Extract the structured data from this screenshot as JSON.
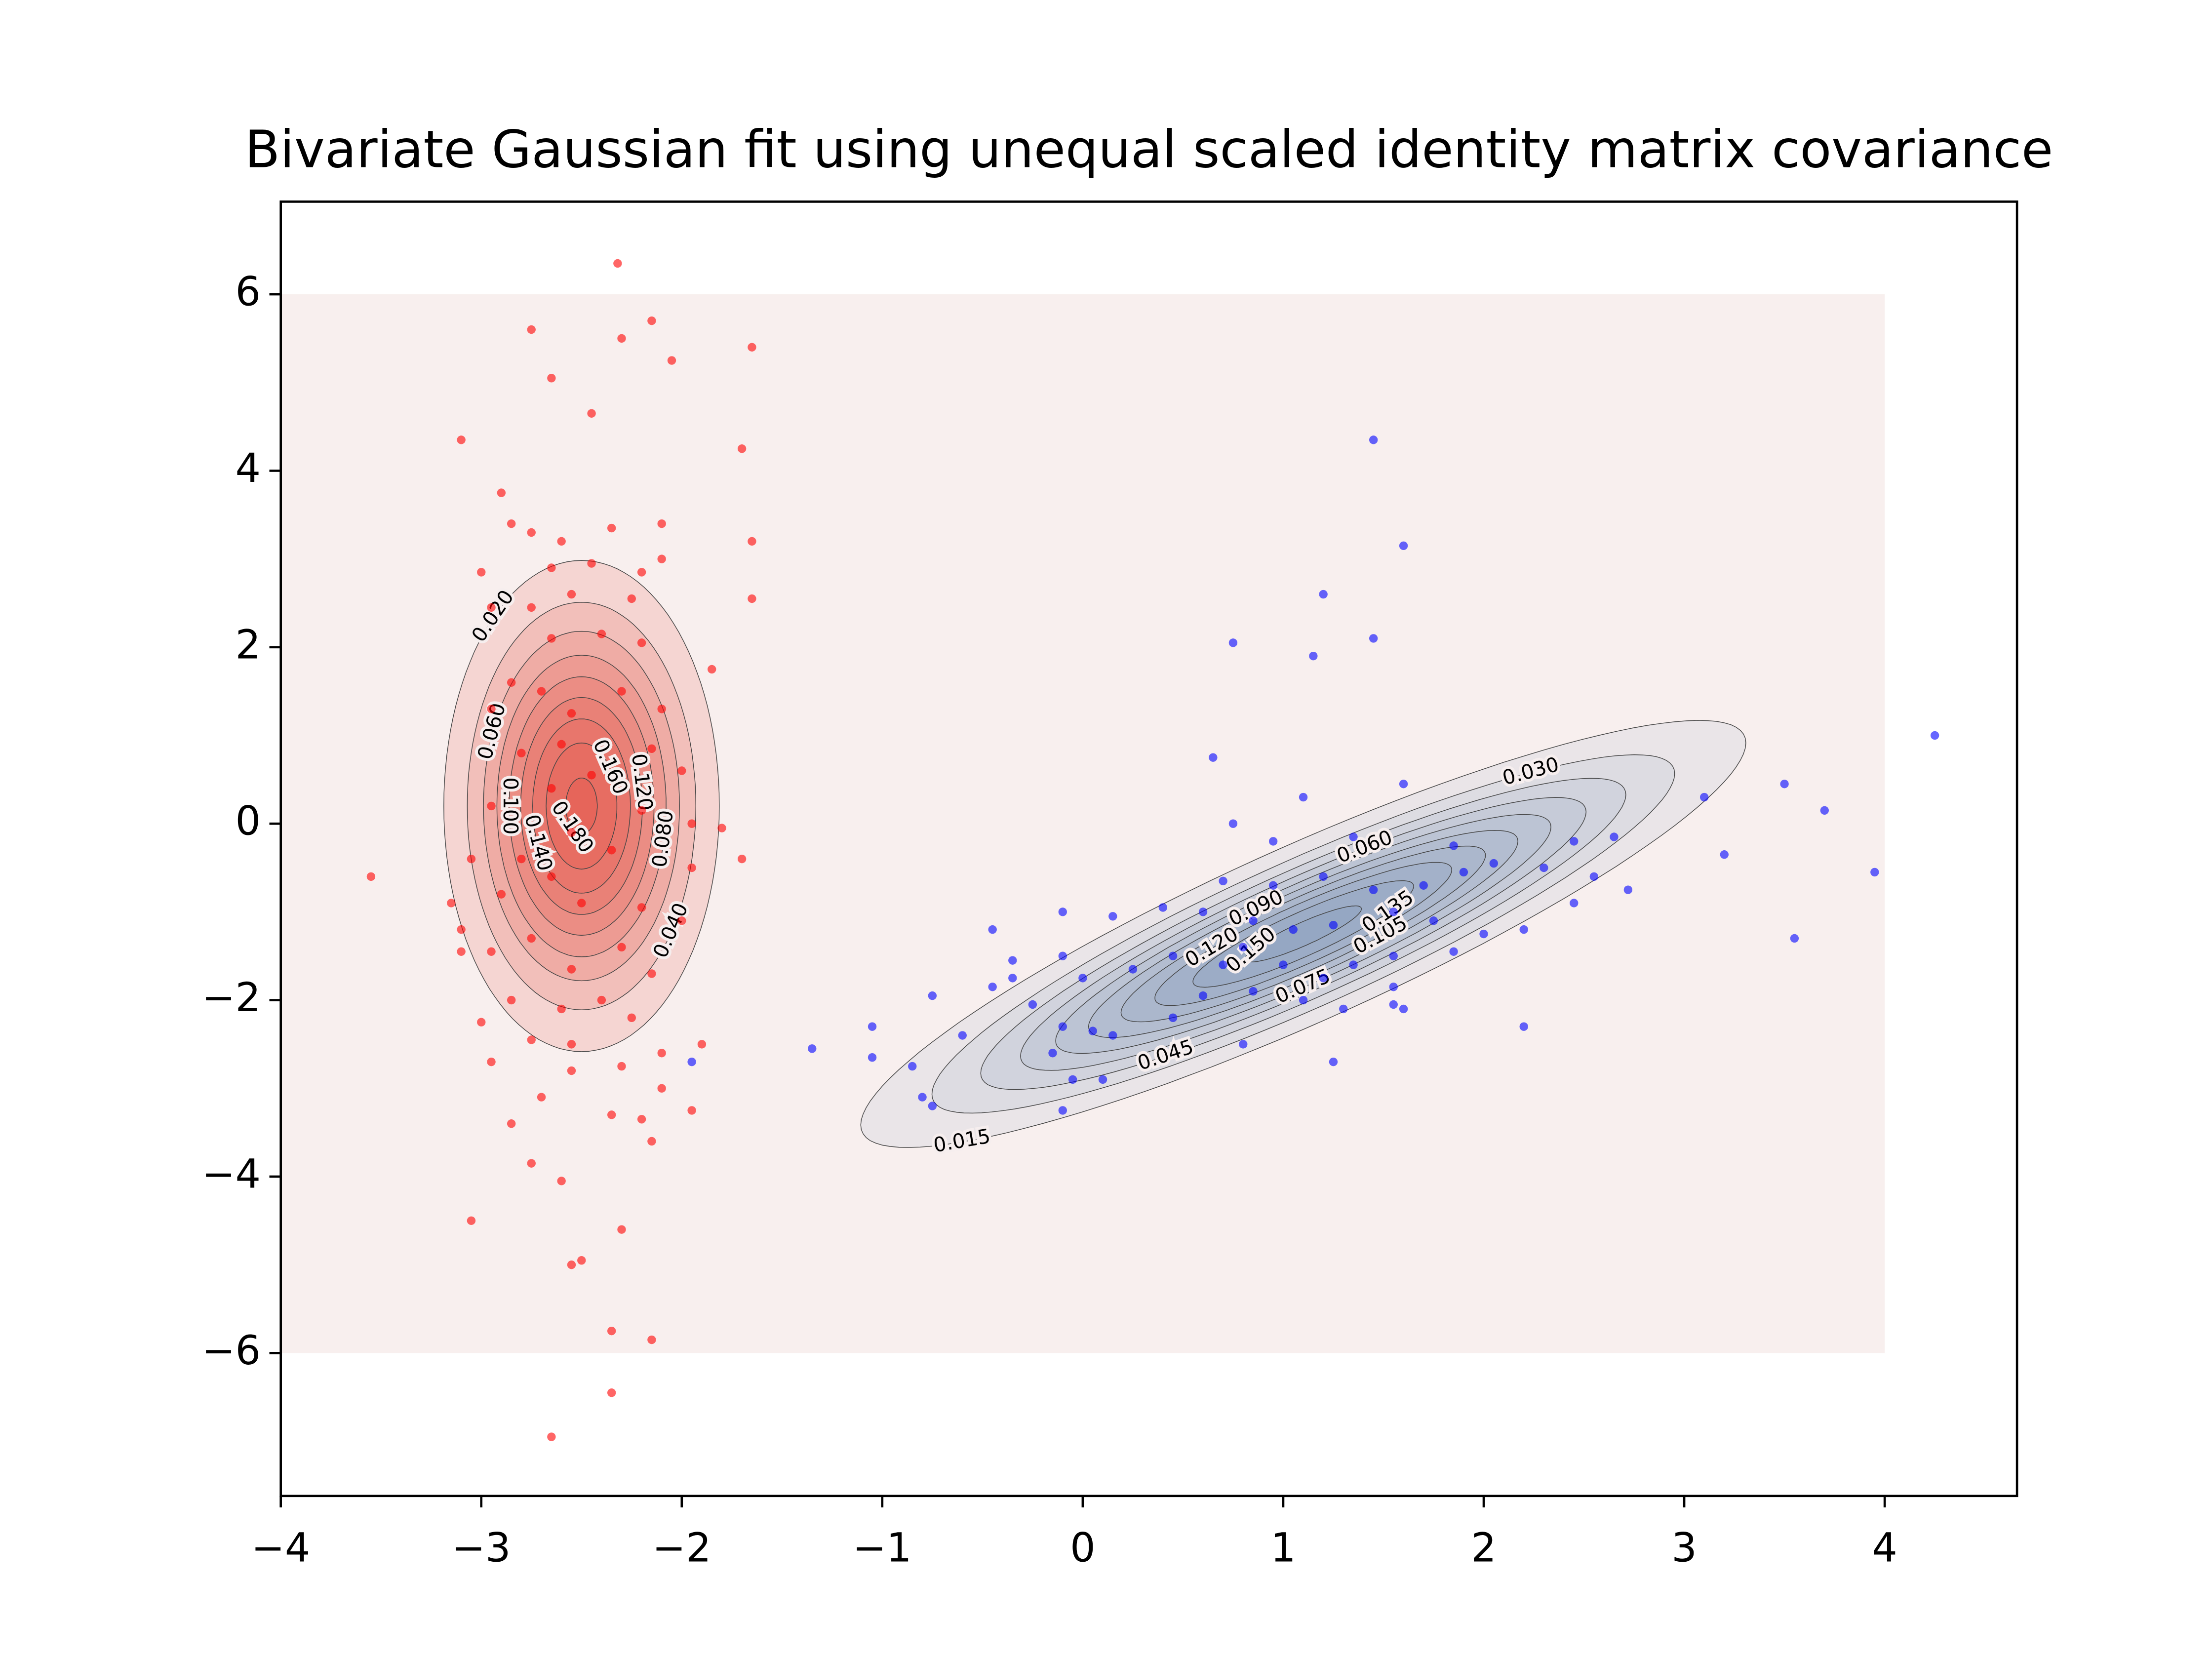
{
  "chart_data": {
    "type": "scatter",
    "title": "Bivariate Gaussian fit using unequal scaled identity matrix covariance",
    "xlim": [
      -4,
      4.66
    ],
    "ylim": [
      -7.62,
      7.05
    ],
    "xticks": [
      {
        "value": -4,
        "label": "−4"
      },
      {
        "value": -3,
        "label": "−3"
      },
      {
        "value": -2,
        "label": "−2"
      },
      {
        "value": -1,
        "label": "−1"
      },
      0,
      1,
      2,
      3,
      4
    ],
    "yticks": [
      {
        "value": -6,
        "label": "−6"
      },
      {
        "value": -4,
        "label": "−4"
      },
      {
        "value": -2,
        "label": "−2"
      },
      0,
      2,
      4,
      6
    ],
    "grid": false,
    "grid_extent": {
      "x": [
        -4,
        4
      ],
      "y": [
        -6,
        6
      ],
      "color": "#f8efee"
    },
    "components": [
      {
        "mean": [
          -2.5,
          0.2
        ],
        "cov": [
          [
            0.106,
            0
          ],
          [
            0,
            1.74
          ]
        ],
        "weight": 0.5,
        "color": "#e63c28",
        "levels": [
          {
            "value": 0.02,
            "label": "0.020"
          },
          {
            "value": 0.04,
            "label": "0.040"
          },
          {
            "value": 0.06,
            "label": "0.060"
          },
          {
            "value": 0.08,
            "label": "0.080"
          },
          {
            "value": 0.1,
            "label": "0.100"
          },
          {
            "value": 0.12,
            "label": "0.120"
          },
          {
            "value": 0.14,
            "label": "0.140"
          },
          {
            "value": 0.16,
            "label": "0.160"
          },
          {
            "value": 0.18,
            "label": "0.180"
          }
        ]
      },
      {
        "mean": [
          1.1,
          -1.25
        ],
        "cov": [
          [
            1.04,
            1.02
          ],
          [
            1.02,
            1.25
          ]
        ],
        "weight": 0.5,
        "color": "#4a6ea8",
        "levels": [
          {
            "value": 0.015,
            "label": "0.015"
          },
          {
            "value": 0.03,
            "label": "0.030"
          },
          {
            "value": 0.045,
            "label": "0.045"
          },
          {
            "value": 0.06,
            "label": "0.060"
          },
          {
            "value": 0.075,
            "label": "0.075"
          },
          {
            "value": 0.09,
            "label": "0.090"
          },
          {
            "value": 0.105,
            "label": "0.105"
          },
          {
            "value": 0.12,
            "label": "0.120"
          },
          {
            "value": 0.135,
            "label": "0.135"
          },
          {
            "value": 0.15,
            "label": "0.150"
          }
        ]
      }
    ],
    "series": [
      {
        "color": "red",
        "x": [
          -2.32,
          -2.75,
          -2.3,
          -2.15,
          -2.05,
          -1.65,
          -2.65,
          -3.1,
          -2.45,
          -1.7,
          -2.9,
          -2.85,
          -2.75,
          -2.1,
          -1.65,
          -2.35,
          -2.6,
          -3.0,
          -2.65,
          -2.2,
          -2.1,
          -2.45,
          -1.65,
          -2.95,
          -2.75,
          -2.55,
          -2.25,
          -2.65,
          -2.4,
          -2.2,
          -1.85,
          -2.85,
          -2.7,
          -2.3,
          -2.1,
          -2.95,
          -2.55,
          -2.6,
          -2.15,
          -2.8,
          -2.0,
          -2.45,
          -2.65,
          -2.95,
          -2.2,
          -1.95,
          -1.8,
          -2.55,
          -3.05,
          -2.8,
          -2.35,
          -1.7,
          -1.95,
          -2.65,
          -2.9,
          -3.55,
          -3.15,
          -2.5,
          -2.2,
          -3.1,
          -2.75,
          -2.3,
          -2.0,
          -2.95,
          -3.1,
          -2.55,
          -2.15,
          -2.85,
          -2.4,
          -2.6,
          -2.25,
          -3.0,
          -2.75,
          -2.55,
          -2.1,
          -2.95,
          -1.9,
          -2.55,
          -2.3,
          -2.7,
          -2.1,
          -1.95,
          -2.35,
          -2.2,
          -2.85,
          -2.15,
          -2.75,
          -2.6,
          -2.3,
          -3.05,
          -2.5,
          -2.55,
          -2.35,
          -2.15,
          -2.35,
          -2.65
        ],
        "y": [
          6.35,
          5.6,
          5.5,
          5.7,
          5.25,
          5.4,
          5.05,
          4.35,
          4.65,
          4.25,
          3.75,
          3.4,
          3.3,
          3.4,
          3.2,
          3.35,
          3.2,
          2.85,
          2.9,
          2.85,
          3.0,
          2.95,
          2.55,
          2.45,
          2.45,
          2.6,
          2.55,
          2.1,
          2.15,
          2.05,
          1.75,
          1.6,
          1.5,
          1.5,
          1.3,
          1.3,
          1.25,
          0.9,
          0.85,
          0.8,
          0.6,
          0.55,
          0.4,
          0.2,
          0.15,
          0.0,
          -0.05,
          -0.1,
          -0.4,
          -0.4,
          -0.3,
          -0.4,
          -0.5,
          -0.6,
          -0.8,
          -0.6,
          -0.9,
          -0.9,
          -0.95,
          -1.2,
          -1.3,
          -1.4,
          -1.1,
          -1.45,
          -1.45,
          -1.65,
          -1.7,
          -2.0,
          -2.0,
          -2.1,
          -2.2,
          -2.25,
          -2.45,
          -2.5,
          -2.6,
          -2.7,
          -2.5,
          -2.8,
          -2.75,
          -3.1,
          -3.0,
          -3.25,
          -3.3,
          -3.35,
          -3.4,
          -3.6,
          -3.85,
          -4.05,
          -4.6,
          -4.5,
          -4.95,
          -5.0,
          -5.75,
          -5.85,
          -6.45,
          -6.95
        ]
      },
      {
        "color": "blue",
        "x": [
          1.45,
          1.6,
          1.2,
          0.75,
          1.15,
          1.45,
          4.25,
          3.5,
          3.1,
          3.7,
          3.2,
          3.95,
          3.55,
          0.65,
          1.1,
          1.6,
          0.75,
          1.35,
          0.95,
          1.85,
          2.45,
          2.65,
          2.05,
          2.3,
          2.55,
          2.72,
          1.9,
          1.7,
          1.45,
          1.2,
          0.95,
          0.7,
          0.4,
          0.6,
          0.85,
          1.05,
          1.25,
          1.55,
          1.75,
          2.0,
          2.2,
          2.45,
          -0.1,
          0.15,
          -0.45,
          -0.1,
          -0.35,
          -0.35,
          0.45,
          0.8,
          1.0,
          1.2,
          1.35,
          1.55,
          1.85,
          0.7,
          0.85,
          1.1,
          1.3,
          1.6,
          1.55,
          0.0,
          0.25,
          0.6,
          0.45,
          0.15,
          -0.25,
          -0.1,
          0.05,
          -0.45,
          -0.75,
          -0.6,
          -1.05,
          -1.35,
          -1.05,
          -0.85,
          -0.15,
          0.1,
          -0.05,
          -0.8,
          -0.75,
          -0.1,
          1.25,
          2.2,
          1.55,
          0.8,
          -1.95
        ],
        "y": [
          4.35,
          3.15,
          2.6,
          2.05,
          1.9,
          2.1,
          1.0,
          0.45,
          0.3,
          0.15,
          -0.35,
          -0.55,
          -1.3,
          0.75,
          0.3,
          0.45,
          0.0,
          -0.15,
          -0.2,
          -0.25,
          -0.2,
          -0.15,
          -0.45,
          -0.5,
          -0.6,
          -0.75,
          -0.55,
          -0.7,
          -0.75,
          -0.6,
          -0.7,
          -0.65,
          -0.95,
          -1.0,
          -1.1,
          -1.2,
          -1.15,
          -1.0,
          -1.1,
          -1.25,
          -1.2,
          -0.9,
          -1.0,
          -1.05,
          -1.2,
          -1.5,
          -1.55,
          -1.75,
          -1.5,
          -1.4,
          -1.6,
          -1.75,
          -1.6,
          -1.5,
          -1.45,
          -1.6,
          -1.9,
          -2.0,
          -2.1,
          -2.1,
          -1.85,
          -1.75,
          -1.65,
          -1.95,
          -2.2,
          -2.4,
          -2.05,
          -2.3,
          -2.35,
          -1.85,
          -1.95,
          -2.4,
          -2.3,
          -2.55,
          -2.65,
          -2.75,
          -2.6,
          -2.9,
          -2.9,
          -3.1,
          -3.2,
          -3.25,
          -2.7,
          -2.3,
          -2.05,
          -2.5,
          -2.7
        ]
      }
    ]
  }
}
